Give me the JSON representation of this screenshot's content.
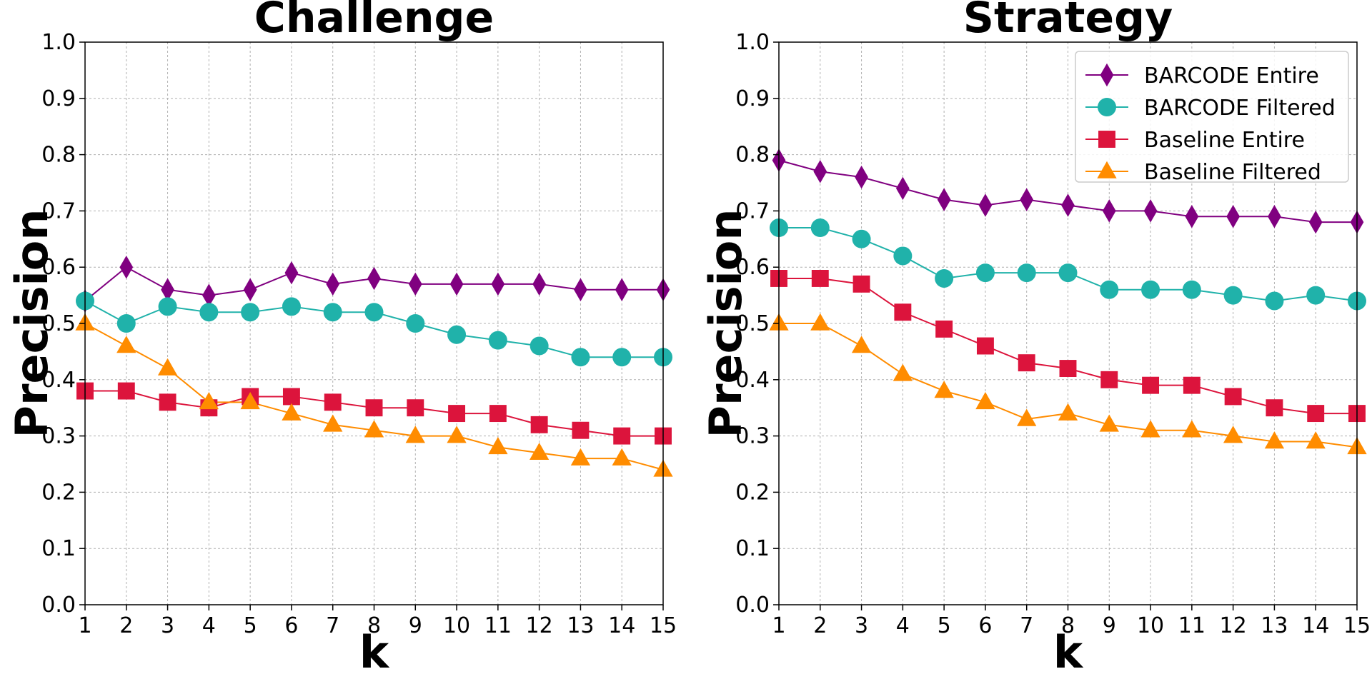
{
  "colors": {
    "barcode_entire": "#800080",
    "barcode_filtered": "#20b2aa",
    "baseline_entire": "#dc143c",
    "baseline_filtered": "#ff8c00"
  },
  "chart_data": [
    {
      "type": "line",
      "title": "Challenge",
      "xlabel": "k",
      "ylabel": "Precision",
      "x": [
        1,
        2,
        3,
        4,
        5,
        6,
        7,
        8,
        9,
        10,
        11,
        12,
        13,
        14,
        15
      ],
      "xlim": [
        1,
        15
      ],
      "ylim": [
        0.0,
        1.0
      ],
      "yticks": [
        "0.0",
        "0.1",
        "0.2",
        "0.3",
        "0.4",
        "0.5",
        "0.6",
        "0.7",
        "0.8",
        "0.9",
        "1.0"
      ],
      "grid": true,
      "series": [
        {
          "name": "BARCODE Entire",
          "marker": "diamond",
          "color": "#800080",
          "values": [
            0.54,
            0.6,
            0.56,
            0.55,
            0.56,
            0.59,
            0.57,
            0.58,
            0.57,
            0.57,
            0.57,
            0.57,
            0.56,
            0.56,
            0.56
          ]
        },
        {
          "name": "BARCODE Filtered",
          "marker": "circle",
          "color": "#20b2aa",
          "values": [
            0.54,
            0.5,
            0.53,
            0.52,
            0.52,
            0.53,
            0.52,
            0.52,
            0.5,
            0.48,
            0.47,
            0.46,
            0.44,
            0.44,
            0.44
          ]
        },
        {
          "name": "Baseline Entire",
          "marker": "square",
          "color": "#dc143c",
          "values": [
            0.38,
            0.38,
            0.36,
            0.35,
            0.37,
            0.37,
            0.36,
            0.35,
            0.35,
            0.34,
            0.34,
            0.32,
            0.31,
            0.3,
            0.3
          ]
        },
        {
          "name": "Baseline Filtered",
          "marker": "triangle",
          "color": "#ff8c00",
          "values": [
            0.5,
            0.46,
            0.42,
            0.36,
            0.36,
            0.34,
            0.32,
            0.31,
            0.3,
            0.3,
            0.28,
            0.27,
            0.26,
            0.26,
            0.24
          ]
        }
      ]
    },
    {
      "type": "line",
      "title": "Strategy",
      "xlabel": "k",
      "ylabel": "Precision",
      "x": [
        1,
        2,
        3,
        4,
        5,
        6,
        7,
        8,
        9,
        10,
        11,
        12,
        13,
        14,
        15
      ],
      "xlim": [
        1,
        15
      ],
      "ylim": [
        0.0,
        1.0
      ],
      "yticks": [
        "0.0",
        "0.1",
        "0.2",
        "0.3",
        "0.4",
        "0.5",
        "0.6",
        "0.7",
        "0.8",
        "0.9",
        "1.0"
      ],
      "grid": true,
      "legend": "top-right",
      "series": [
        {
          "name": "BARCODE Entire",
          "marker": "diamond",
          "color": "#800080",
          "values": [
            0.79,
            0.77,
            0.76,
            0.74,
            0.72,
            0.71,
            0.72,
            0.71,
            0.7,
            0.7,
            0.69,
            0.69,
            0.69,
            0.68,
            0.68
          ]
        },
        {
          "name": "BARCODE Filtered",
          "marker": "circle",
          "color": "#20b2aa",
          "values": [
            0.67,
            0.67,
            0.65,
            0.62,
            0.58,
            0.59,
            0.59,
            0.59,
            0.56,
            0.56,
            0.56,
            0.55,
            0.54,
            0.55,
            0.54
          ]
        },
        {
          "name": "Baseline Entire",
          "marker": "square",
          "color": "#dc143c",
          "values": [
            0.58,
            0.58,
            0.57,
            0.52,
            0.49,
            0.46,
            0.43,
            0.42,
            0.4,
            0.39,
            0.39,
            0.37,
            0.35,
            0.34,
            0.34
          ]
        },
        {
          "name": "Baseline Filtered",
          "marker": "triangle",
          "color": "#ff8c00",
          "values": [
            0.5,
            0.5,
            0.46,
            0.41,
            0.38,
            0.36,
            0.33,
            0.34,
            0.32,
            0.31,
            0.31,
            0.3,
            0.29,
            0.29,
            0.28
          ]
        }
      ]
    }
  ]
}
